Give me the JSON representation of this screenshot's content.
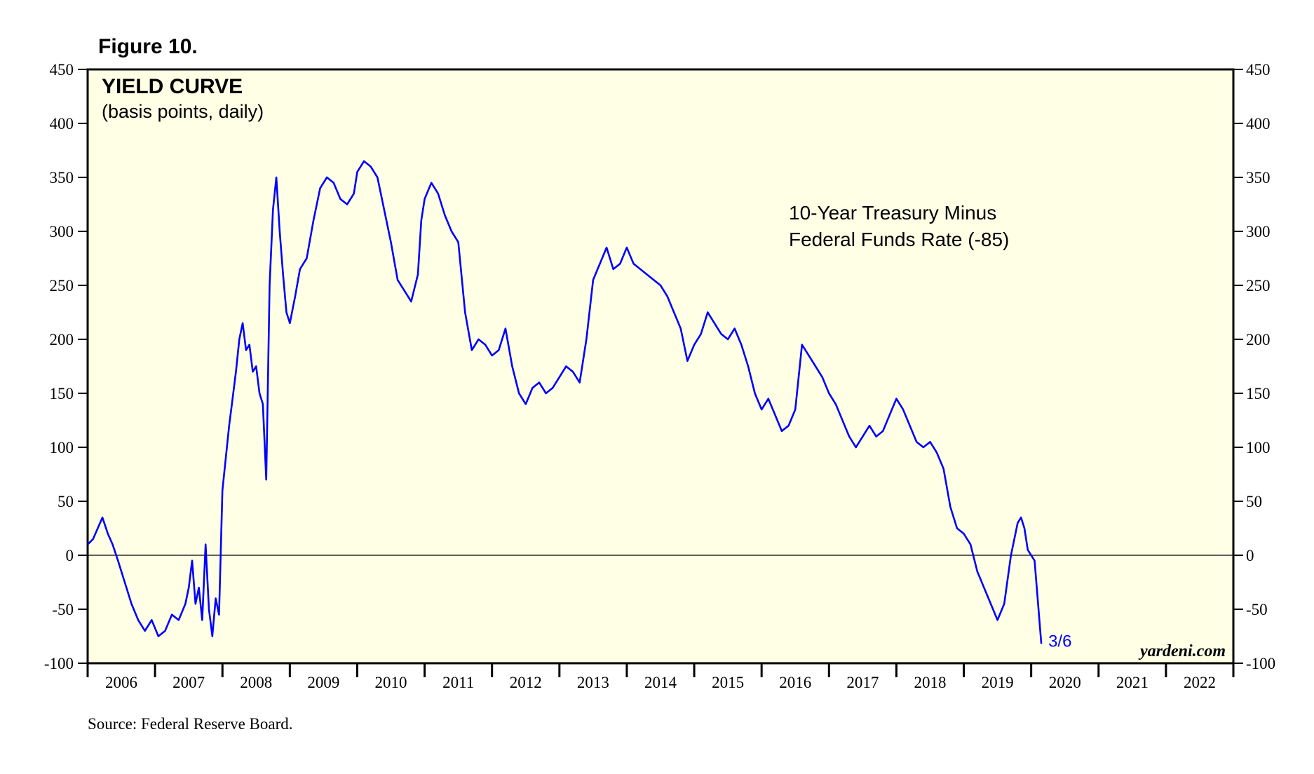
{
  "figure_label": "Figure 10.",
  "source": "Source: Federal Reserve Board.",
  "watermark": "yardeni.com",
  "chart_data": {
    "type": "line",
    "title": "YIELD CURVE",
    "subtitle": "(basis points, daily)",
    "annotation_lines": [
      "10-Year Treasury Minus",
      "Federal Funds Rate (-85)"
    ],
    "end_label": "3/6",
    "ylim": [
      -100,
      450
    ],
    "yticks": [
      -100,
      -50,
      0,
      50,
      100,
      150,
      200,
      250,
      300,
      350,
      400,
      450
    ],
    "xlim": [
      2006,
      2023
    ],
    "x_categories": [
      "2006",
      "2007",
      "2008",
      "2009",
      "2010",
      "2011",
      "2012",
      "2013",
      "2014",
      "2015",
      "2016",
      "2017",
      "2018",
      "2019",
      "2020",
      "2021",
      "2022"
    ],
    "zero_line": true,
    "grid": false,
    "colors": {
      "background": "#FFFFE6",
      "line": "#0000FF",
      "axis": "#000000"
    },
    "series": [
      {
        "values": [
          [
            2006.0,
            10
          ],
          [
            2006.08,
            15
          ],
          [
            2006.15,
            25
          ],
          [
            2006.22,
            35
          ],
          [
            2006.3,
            20
          ],
          [
            2006.37,
            10
          ],
          [
            2006.45,
            -5
          ],
          [
            2006.55,
            -25
          ],
          [
            2006.65,
            -45
          ],
          [
            2006.75,
            -60
          ],
          [
            2006.85,
            -70
          ],
          [
            2006.95,
            -60
          ],
          [
            2007.05,
            -75
          ],
          [
            2007.15,
            -70
          ],
          [
            2007.25,
            -55
          ],
          [
            2007.35,
            -60
          ],
          [
            2007.45,
            -45
          ],
          [
            2007.5,
            -30
          ],
          [
            2007.55,
            -5
          ],
          [
            2007.6,
            -45
          ],
          [
            2007.65,
            -30
          ],
          [
            2007.7,
            -60
          ],
          [
            2007.75,
            10
          ],
          [
            2007.8,
            -50
          ],
          [
            2007.85,
            -75
          ],
          [
            2007.9,
            -40
          ],
          [
            2007.95,
            -55
          ],
          [
            2008.0,
            60
          ],
          [
            2008.05,
            90
          ],
          [
            2008.1,
            120
          ],
          [
            2008.15,
            145
          ],
          [
            2008.2,
            170
          ],
          [
            2008.25,
            200
          ],
          [
            2008.3,
            215
          ],
          [
            2008.35,
            190
          ],
          [
            2008.4,
            195
          ],
          [
            2008.45,
            170
          ],
          [
            2008.5,
            175
          ],
          [
            2008.55,
            150
          ],
          [
            2008.6,
            140
          ],
          [
            2008.65,
            70
          ],
          [
            2008.7,
            250
          ],
          [
            2008.75,
            320
          ],
          [
            2008.8,
            350
          ],
          [
            2008.85,
            300
          ],
          [
            2008.9,
            260
          ],
          [
            2008.95,
            225
          ],
          [
            2009.0,
            215
          ],
          [
            2009.08,
            240
          ],
          [
            2009.15,
            265
          ],
          [
            2009.25,
            275
          ],
          [
            2009.35,
            310
          ],
          [
            2009.45,
            340
          ],
          [
            2009.55,
            350
          ],
          [
            2009.65,
            345
          ],
          [
            2009.75,
            330
          ],
          [
            2009.85,
            325
          ],
          [
            2009.95,
            335
          ],
          [
            2010.0,
            355
          ],
          [
            2010.1,
            365
          ],
          [
            2010.2,
            360
          ],
          [
            2010.3,
            350
          ],
          [
            2010.4,
            320
          ],
          [
            2010.5,
            290
          ],
          [
            2010.6,
            255
          ],
          [
            2010.7,
            245
          ],
          [
            2010.8,
            235
          ],
          [
            2010.9,
            260
          ],
          [
            2010.95,
            310
          ],
          [
            2011.0,
            330
          ],
          [
            2011.1,
            345
          ],
          [
            2011.2,
            335
          ],
          [
            2011.3,
            315
          ],
          [
            2011.4,
            300
          ],
          [
            2011.5,
            290
          ],
          [
            2011.6,
            225
          ],
          [
            2011.7,
            190
          ],
          [
            2011.8,
            200
          ],
          [
            2011.9,
            195
          ],
          [
            2012.0,
            185
          ],
          [
            2012.1,
            190
          ],
          [
            2012.2,
            210
          ],
          [
            2012.3,
            175
          ],
          [
            2012.4,
            150
          ],
          [
            2012.5,
            140
          ],
          [
            2012.6,
            155
          ],
          [
            2012.7,
            160
          ],
          [
            2012.8,
            150
          ],
          [
            2012.9,
            155
          ],
          [
            2013.0,
            165
          ],
          [
            2013.1,
            175
          ],
          [
            2013.2,
            170
          ],
          [
            2013.3,
            160
          ],
          [
            2013.4,
            200
          ],
          [
            2013.5,
            255
          ],
          [
            2013.6,
            270
          ],
          [
            2013.7,
            285
          ],
          [
            2013.8,
            265
          ],
          [
            2013.9,
            270
          ],
          [
            2014.0,
            285
          ],
          [
            2014.1,
            270
          ],
          [
            2014.2,
            265
          ],
          [
            2014.3,
            260
          ],
          [
            2014.4,
            255
          ],
          [
            2014.5,
            250
          ],
          [
            2014.6,
            240
          ],
          [
            2014.7,
            225
          ],
          [
            2014.8,
            210
          ],
          [
            2014.9,
            180
          ],
          [
            2015.0,
            195
          ],
          [
            2015.1,
            205
          ],
          [
            2015.2,
            225
          ],
          [
            2015.3,
            215
          ],
          [
            2015.4,
            205
          ],
          [
            2015.5,
            200
          ],
          [
            2015.6,
            210
          ],
          [
            2015.7,
            195
          ],
          [
            2015.8,
            175
          ],
          [
            2015.9,
            150
          ],
          [
            2016.0,
            135
          ],
          [
            2016.1,
            145
          ],
          [
            2016.2,
            130
          ],
          [
            2016.3,
            115
          ],
          [
            2016.4,
            120
          ],
          [
            2016.5,
            135
          ],
          [
            2016.6,
            195
          ],
          [
            2016.7,
            185
          ],
          [
            2016.8,
            175
          ],
          [
            2016.9,
            165
          ],
          [
            2017.0,
            150
          ],
          [
            2017.1,
            140
          ],
          [
            2017.2,
            125
          ],
          [
            2017.3,
            110
          ],
          [
            2017.4,
            100
          ],
          [
            2017.5,
            110
          ],
          [
            2017.6,
            120
          ],
          [
            2017.7,
            110
          ],
          [
            2017.8,
            115
          ],
          [
            2017.9,
            130
          ],
          [
            2018.0,
            145
          ],
          [
            2018.1,
            135
          ],
          [
            2018.2,
            120
          ],
          [
            2018.3,
            105
          ],
          [
            2018.4,
            100
          ],
          [
            2018.5,
            105
          ],
          [
            2018.6,
            95
          ],
          [
            2018.7,
            80
          ],
          [
            2018.8,
            45
          ],
          [
            2018.9,
            25
          ],
          [
            2019.0,
            20
          ],
          [
            2019.1,
            10
          ],
          [
            2019.2,
            -15
          ],
          [
            2019.3,
            -30
          ],
          [
            2019.4,
            -45
          ],
          [
            2019.5,
            -60
          ],
          [
            2019.6,
            -45
          ],
          [
            2019.7,
            0
          ],
          [
            2019.8,
            30
          ],
          [
            2019.85,
            35
          ],
          [
            2019.9,
            25
          ],
          [
            2019.95,
            5
          ],
          [
            2020.05,
            -5
          ],
          [
            2020.15,
            -82
          ]
        ]
      }
    ]
  }
}
